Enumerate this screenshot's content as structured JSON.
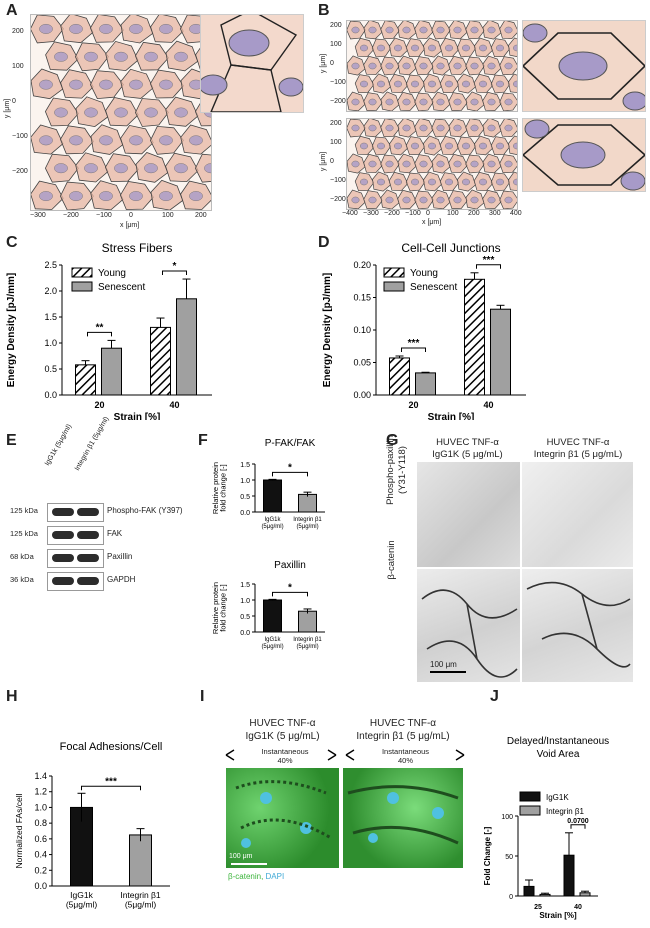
{
  "panels": {
    "A": {
      "letter": "A",
      "xlabel": "x [μm]",
      "ylabel": "y [μm]",
      "xticks": [
        "−300",
        "−200",
        "−100",
        "0",
        "100",
        "200"
      ],
      "yticks": [
        "200",
        "100",
        "0",
        "−100",
        "−200"
      ]
    },
    "B": {
      "letter": "B",
      "xlabel": "x [μm]",
      "ylabel": "y [μm]",
      "top_yticks": [
        "200",
        "100",
        "0",
        "−100",
        "−200"
      ],
      "bot_yticks": [
        "200",
        "100",
        "0",
        "−100",
        "−200"
      ],
      "xticks": [
        "−400",
        "−300",
        "−200",
        "−100",
        "0",
        "100",
        "200",
        "300",
        "400"
      ]
    },
    "C": {
      "letter": "C"
    },
    "D": {
      "letter": "D"
    },
    "E": {
      "letter": "E",
      "lanes": [
        "IgG1k (5μg/ml)",
        "Integrin β1 (5μg/ml)"
      ],
      "rows": [
        {
          "kda": "125 kDa",
          "name": "Phospho-FAK (Y397)"
        },
        {
          "kda": "125 kDa",
          "name": "FAK"
        },
        {
          "kda": "68 kDa",
          "name": "Paxillin"
        },
        {
          "kda": "36 kDa",
          "name": "GAPDH"
        }
      ]
    },
    "F": {
      "letter": "F"
    },
    "G": {
      "letter": "G",
      "col1": [
        "HUVEC TNF-α",
        "IgG1K (5 μg/mL)"
      ],
      "col2": [
        "HUVEC TNF-α",
        "Integrin β1 (5 μg/mL)"
      ],
      "row1": [
        "Phospho-paxillin",
        "(Y31-Y118)"
      ],
      "row2": "β-catenin",
      "scale": "100 μm"
    },
    "H": {
      "letter": "H"
    },
    "I": {
      "letter": "I",
      "col1": [
        "HUVEC TNF-α",
        "IgG1K (5 μg/mL)"
      ],
      "col2": [
        "HUVEC TNF-α",
        "Integrin β1 (5 μg/mL)"
      ],
      "sub": [
        "Instantaneous",
        "40%"
      ],
      "scale": "100 μm",
      "legend_a": "β-catenin,",
      "legend_b": "DAPI"
    },
    "J": {
      "letter": "J"
    }
  },
  "chart_data": [
    {
      "id": "C",
      "type": "bar",
      "title": "Stress Fibers",
      "xlabel": "Strain [%]",
      "ylabel": "Energy Density [pJ/mm]",
      "categories": [
        "20",
        "40"
      ],
      "ylim": [
        0,
        2.5
      ],
      "yticks": [
        "0.0",
        "0.5",
        "1.0",
        "1.5",
        "2.0",
        "2.5"
      ],
      "legend": "top-left",
      "series": [
        {
          "name": "Young",
          "values": [
            0.58,
            1.3
          ],
          "err": [
            0.08,
            0.18
          ],
          "fill": "hatch"
        },
        {
          "name": "Senescent",
          "values": [
            0.9,
            1.85
          ],
          "err": [
            0.15,
            0.38
          ],
          "fill": "#a0a0a0"
        }
      ],
      "sig": [
        {
          "cat": 0,
          "label": "**"
        },
        {
          "cat": 1,
          "label": "*"
        }
      ]
    },
    {
      "id": "D",
      "type": "bar",
      "title": "Cell-Cell Junctions",
      "xlabel": "Strain [%]",
      "ylabel": "Energy Density [pJ/mm]",
      "categories": [
        "20",
        "40"
      ],
      "ylim": [
        0,
        0.2
      ],
      "yticks": [
        "0.00",
        "0.05",
        "0.10",
        "0.15",
        "0.20"
      ],
      "legend": "top-left",
      "series": [
        {
          "name": "Young",
          "values": [
            0.057,
            0.178
          ],
          "err": [
            0.003,
            0.01
          ],
          "fill": "hatch"
        },
        {
          "name": "Senescent",
          "values": [
            0.034,
            0.132
          ],
          "err": [
            0.001,
            0.006
          ],
          "fill": "#a0a0a0"
        }
      ],
      "sig": [
        {
          "cat": 0,
          "label": "***"
        },
        {
          "cat": 1,
          "label": "***"
        }
      ]
    },
    {
      "id": "F1",
      "type": "bar",
      "title": "P-FAK/FAK",
      "ylabel": [
        "Relative protein",
        "fold change [-]"
      ],
      "categories": [
        "IgG1k (5μg/ml)",
        "Integrin β1 (5μg/ml)"
      ],
      "values": [
        1.0,
        0.55
      ],
      "err": [
        0.02,
        0.07
      ],
      "colors": [
        "#111111",
        "#a0a0a0"
      ],
      "ylim": [
        0,
        1.5
      ],
      "yticks": [
        "0.0",
        "0.5",
        "1.0",
        "1.5"
      ],
      "sig": "*"
    },
    {
      "id": "F2",
      "type": "bar",
      "title": "Paxillin",
      "ylabel": [
        "Relative protein",
        "fold change [-]"
      ],
      "categories": [
        "IgG1k (5μg/ml)",
        "Integrin β1 (5μg/ml)"
      ],
      "values": [
        1.0,
        0.65
      ],
      "err": [
        0.02,
        0.07
      ],
      "colors": [
        "#111111",
        "#a0a0a0"
      ],
      "ylim": [
        0,
        1.5
      ],
      "yticks": [
        "0.0",
        "0.5",
        "1.0",
        "1.5"
      ],
      "sig": "*"
    },
    {
      "id": "H",
      "type": "bar",
      "title": "Focal Adhesions/Cell",
      "ylabel": "Normalized FAs/cell",
      "categories": [
        "IgG1k (5μg/ml)",
        "Integrin β1 (5μg/ml)"
      ],
      "values": [
        1.0,
        0.65
      ],
      "err": [
        0.18,
        0.08
      ],
      "colors": [
        "#111111",
        "#a0a0a0"
      ],
      "ylim": [
        0,
        1.4
      ],
      "yticks": [
        "0.0",
        "0.2",
        "0.4",
        "0.6",
        "0.8",
        "1.0",
        "1.2",
        "1.4"
      ],
      "sig": "***"
    },
    {
      "id": "J",
      "type": "bar",
      "title": [
        "Delayed/Instantaneous",
        "Void Area"
      ],
      "xlabel": "Strain [%]",
      "ylabel": "Fold Change [-]",
      "categories": [
        "25",
        "40"
      ],
      "ylim": [
        0,
        100
      ],
      "yticks": [
        "0",
        "50",
        "100"
      ],
      "legend": "top-left",
      "series": [
        {
          "name": "IgG1K",
          "values": [
            12,
            51
          ],
          "err": [
            8,
            28
          ],
          "fill": "#111111"
        },
        {
          "name": "Integrin β1",
          "values": [
            2,
            4
          ],
          "err": [
            1.5,
            2
          ],
          "fill": "#a0a0a0"
        }
      ],
      "sig": [
        {
          "cat": 1,
          "label": "0.0700"
        }
      ]
    }
  ]
}
